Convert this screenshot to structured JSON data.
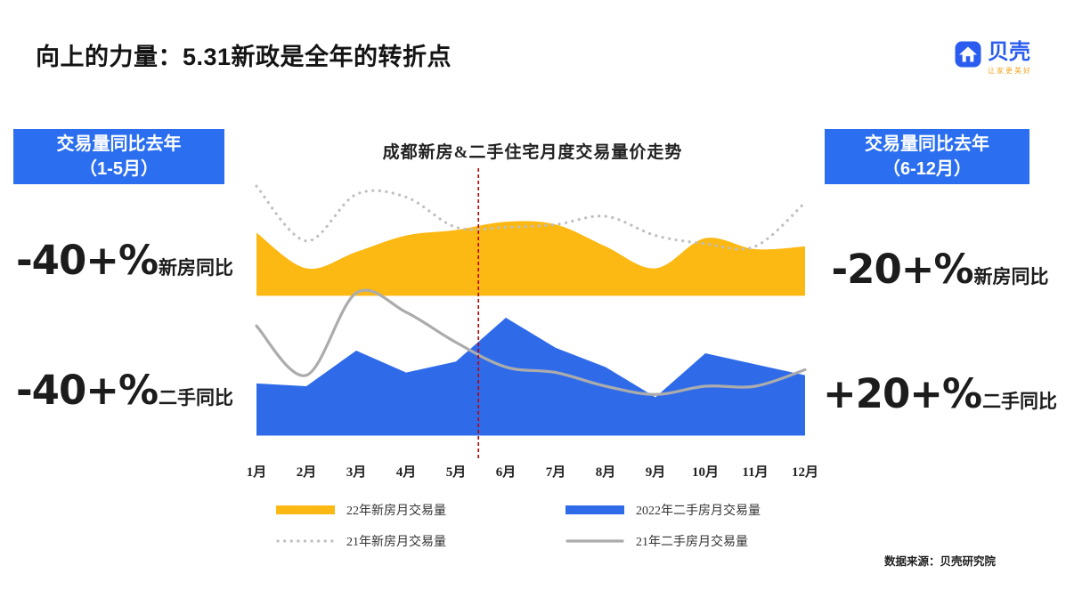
{
  "page": {
    "title": "向上的力量：5.31新政是全年的转折点",
    "source": "数据来源：贝壳研究院"
  },
  "logo": {
    "icon": "beike-house-logo-icon",
    "name": "贝壳",
    "tagline": "让家更美好",
    "brand_color": "#2b5cf0",
    "tagline_color": "#f5a623"
  },
  "badges": {
    "left": {
      "line1": "交易量同比去年",
      "line2": "（1-5月）"
    },
    "right": {
      "line1": "交易量同比去年",
      "line2": "（6-12月）"
    },
    "color": "#2b6ff0"
  },
  "stats": {
    "left_top": {
      "value": "-40+%",
      "label": "新房同比"
    },
    "left_bottom": {
      "value": "-40+%",
      "label": "二手同比"
    },
    "right_top": {
      "value": "-20+%",
      "label": "新房同比"
    },
    "right_bottom": {
      "value": "+20+%",
      "label": "二手同比"
    }
  },
  "chart_data": {
    "type": "area+line",
    "title": "成都新房&二手住宅月度交易量价走势",
    "categories": [
      "1月",
      "2月",
      "3月",
      "4月",
      "5月",
      "6月",
      "7月",
      "8月",
      "9月",
      "10月",
      "11月",
      "12月"
    ],
    "ylim": [
      0,
      100
    ],
    "grid": false,
    "legend_position": "bottom",
    "series": [
      {
        "name": "22年新房月交易量",
        "kind": "area",
        "color": "#FCB813",
        "baseline": 58,
        "smooth": true,
        "values": [
          81,
          68,
          74,
          80,
          82,
          85,
          84,
          76,
          68,
          79,
          75,
          76
        ]
      },
      {
        "name": "21年新房月交易量",
        "kind": "line",
        "dash": "dotted",
        "color": "#BFBFBF",
        "width": 3.2,
        "smooth": true,
        "values": [
          98,
          78,
          95,
          94,
          83,
          83,
          84,
          87,
          80,
          77,
          76,
          92
        ]
      },
      {
        "name": "2022年二手房月交易量",
        "kind": "area",
        "color": "#2F6BE8",
        "baseline": 7,
        "smooth": false,
        "values": [
          26,
          25,
          38,
          30,
          34,
          50,
          39,
          32,
          21,
          37,
          33,
          29
        ]
      },
      {
        "name": "21年二手房月交易量",
        "kind": "line",
        "dash": "solid",
        "color": "#ACACAC",
        "width": 3.2,
        "smooth": true,
        "values": [
          47,
          29,
          59,
          52,
          41,
          32,
          30,
          25,
          22,
          25,
          25,
          31
        ]
      }
    ],
    "legend_order": [
      0,
      2,
      1,
      3
    ],
    "annotation": {
      "type": "vline",
      "x": 4.45,
      "color": "#C00000",
      "style": "dashed"
    }
  }
}
